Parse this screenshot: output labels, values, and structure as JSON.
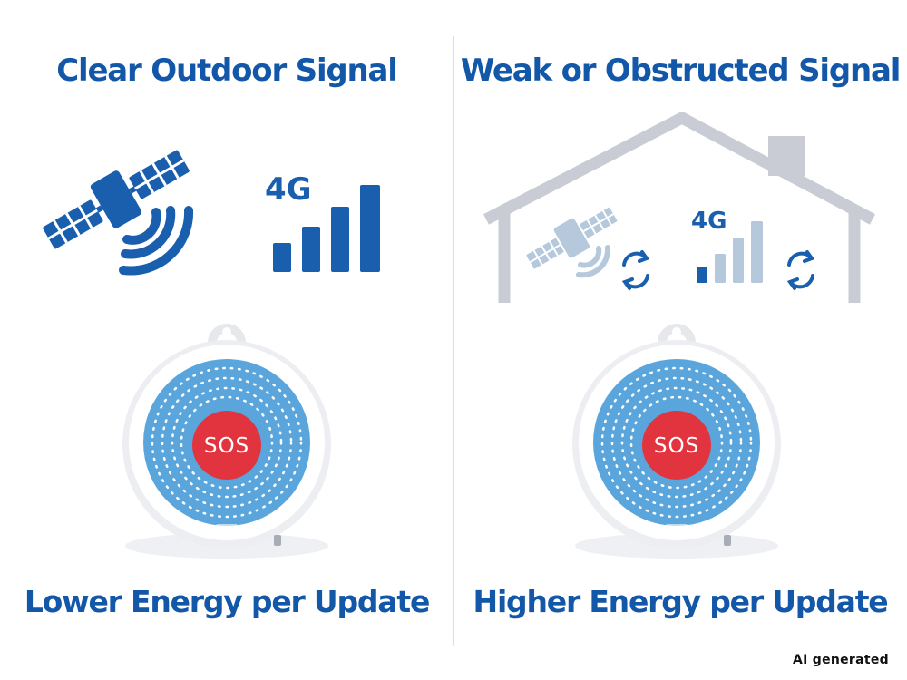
{
  "left_panel": {
    "title": "Clear Outdoor Signal",
    "network_label": "4G",
    "button_label": "SOS",
    "caption": "Lower Energy per Update"
  },
  "right_panel": {
    "title": "Weak or Obstructed Signal",
    "network_label": "4G",
    "button_label": "SOS",
    "caption": "Higher Energy per Update"
  },
  "watermark": "AI generated",
  "icons": [
    "satellite-icon",
    "signal-bars-icon",
    "house-icon",
    "refresh-icon",
    "sos-pendant-icon"
  ],
  "colors": {
    "primary_blue": "#1a5fae",
    "pendant_blue": "#5aa6dc",
    "sos_red": "#e2343f",
    "house_gray": "#c9ccd4",
    "faded_blue": "#b6c8dc"
  }
}
